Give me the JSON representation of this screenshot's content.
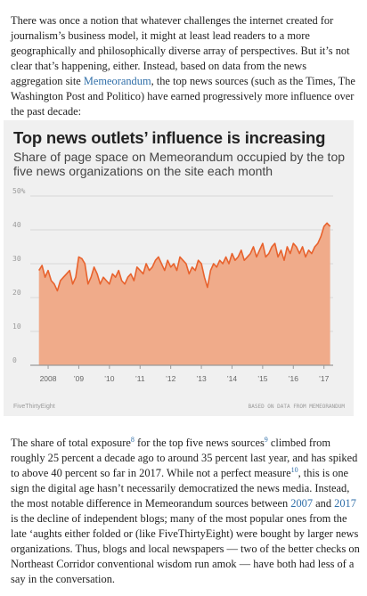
{
  "intro": {
    "before_link": "There was once a notion that whatever challenges the internet created for journalism’s business model, it might at least lead readers to a more geographically and philosophically diverse array of perspectives. But it’s not clear that’s happening, either. Instead, based on data from the news aggregation site ",
    "link_text": "Memeorandum",
    "after_link": ", the top news sources (such as the Times, The Washington Post and Politico) have earned progressively more influence over the past decade:"
  },
  "chart_data": {
    "type": "area",
    "title": "Top news outlets’ influence is increasing",
    "subtitle": "Share of page space on Memeorandum occupied by the top five news organizations on the site each month",
    "y_ticks": [
      "50%",
      "40",
      "30",
      "20",
      "10",
      "0"
    ],
    "y_tick_values": [
      50,
      40,
      30,
      20,
      10,
      0
    ],
    "ylim": [
      0,
      50
    ],
    "x_ticks": [
      "2008",
      "’09",
      "’10",
      "’11",
      "’12",
      "’13",
      "’14",
      "’15",
      "’16",
      "’17"
    ],
    "x_tick_values": [
      2008,
      2009,
      2010,
      2011,
      2012,
      2013,
      2014,
      2015,
      2016,
      2017
    ],
    "xlim": [
      2007.65,
      2017.3
    ],
    "series": [
      {
        "x": [
          2007.7,
          2007.8,
          2007.9,
          2008.0,
          2008.1,
          2008.2,
          2008.3,
          2008.4,
          2008.5,
          2008.6,
          2008.7,
          2008.8,
          2008.9,
          2009.0,
          2009.1,
          2009.2,
          2009.3,
          2009.4,
          2009.5,
          2009.6,
          2009.7,
          2009.8,
          2009.9,
          2010.0,
          2010.1,
          2010.2,
          2010.3,
          2010.4,
          2010.5,
          2010.6,
          2010.7,
          2010.8,
          2010.9,
          2011.0,
          2011.1,
          2011.2,
          2011.3,
          2011.4,
          2011.5,
          2011.6,
          2011.7,
          2011.8,
          2011.9,
          2012.0,
          2012.1,
          2012.2,
          2012.3,
          2012.4,
          2012.5,
          2012.6,
          2012.7,
          2012.8,
          2012.9,
          2013.0,
          2013.1,
          2013.2,
          2013.3,
          2013.4,
          2013.5,
          2013.6,
          2013.7,
          2013.8,
          2013.9,
          2014.0,
          2014.1,
          2014.2,
          2014.3,
          2014.4,
          2014.5,
          2014.6,
          2014.7,
          2014.8,
          2014.9,
          2015.0,
          2015.1,
          2015.2,
          2015.3,
          2015.4,
          2015.5,
          2015.6,
          2015.7,
          2015.8,
          2015.9,
          2016.0,
          2016.1,
          2016.2,
          2016.3,
          2016.4,
          2016.5,
          2016.6,
          2016.7,
          2016.8,
          2016.9,
          2017.0,
          2017.1,
          2017.2
        ],
        "values": [
          28,
          29.5,
          26,
          28,
          25,
          24,
          22,
          25,
          26,
          27,
          28,
          24,
          26,
          32,
          31.5,
          30,
          24,
          26,
          29,
          27,
          24,
          26,
          25,
          24,
          27,
          26,
          28,
          25,
          24,
          26,
          27,
          25,
          29,
          28,
          27,
          30,
          28,
          29,
          31,
          32,
          30,
          28,
          31,
          29,
          30,
          28,
          32,
          31,
          30,
          27,
          29,
          28,
          31,
          30,
          26,
          23,
          28,
          30,
          29,
          31,
          30,
          32,
          30,
          33,
          31,
          32,
          34,
          31,
          32,
          33,
          35,
          32,
          34,
          36,
          32,
          33,
          35,
          36,
          32,
          34,
          31,
          35,
          33,
          36,
          35,
          33,
          35,
          32,
          34,
          33,
          35,
          36,
          38,
          41,
          42,
          41
        ]
      }
    ],
    "grid": true,
    "colors": {
      "fill": "#f0ab8a",
      "line": "#e8622d",
      "grid": "#d8d8d8",
      "baseline": "#999999"
    },
    "footer_left": "FiveThirtyEight",
    "footer_right": "BASED ON DATA FROM MEMEORANDUM"
  },
  "body2": {
    "p1": "The share of total exposure",
    "sup8": "8",
    "p2": " for the top five news sources",
    "sup9": "9",
    "p3": " climbed from roughly 25 percent a decade ago to around 35 percent last year, and has spiked to above 40 percent so far in 2017. While not a perfect measure",
    "sup10": "10",
    "p4": ", this is one sign the digital age hasn’t necessarily democratized the news media. Instead, the most notable difference in Memeorandum sources between ",
    "link2007": "2007",
    "p5": " and ",
    "link2017": "2017",
    "p6": " is the decline of independent blogs; many of the most popular ones from the late ‘aughts either folded or (like FiveThirtyEight) were bought by larger news organizations. Thus, blogs and local newspapers — two of the better checks on Northeast Corridor conventional wisdom run amok — have both had less of a say in the conversation."
  }
}
